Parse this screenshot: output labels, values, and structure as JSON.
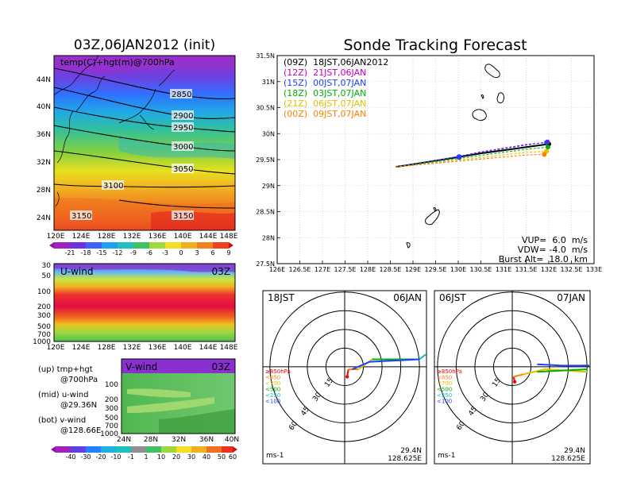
{
  "left_panel": {
    "title": "03Z,06JAN2012 (init)",
    "map_label": "temp(C)+hgt(m)@700hPa",
    "lat_ticks": [
      "44N",
      "40N",
      "36N",
      "32N",
      "28N",
      "24N"
    ],
    "lon_ticks": [
      "120E",
      "124E",
      "128E",
      "132E",
      "136E",
      "140E",
      "144E",
      "148E"
    ],
    "contour_labels": [
      "2850",
      "2900",
      "2950",
      "3000",
      "3050",
      "3100",
      "3150",
      "3150"
    ],
    "temp_colorbar": [
      "-21",
      "-18",
      "-15",
      "-12",
      "-9",
      "-6",
      "-3",
      "0",
      "3",
      "6",
      "9"
    ]
  },
  "uwind_panel": {
    "label": "U-wind",
    "time": "03Z",
    "pressure_ticks": [
      "30",
      "50",
      "100",
      "200",
      "300",
      "500",
      "700",
      "1000"
    ],
    "lon_ticks": [
      "120E",
      "124E",
      "128E",
      "132E",
      "136E",
      "140E",
      "144E",
      "148E"
    ]
  },
  "vwind_panel": {
    "label": "V-wind",
    "time": "03Z",
    "pressure_ticks": [
      "100",
      "200",
      "300",
      "500",
      "700",
      "1000"
    ],
    "lat_ticks": [
      "24N",
      "28N",
      "32N",
      "36N",
      "40N"
    ]
  },
  "legend_notes": [
    {
      "line1": "(up) tmp+hgt",
      "line2": "@700hPa"
    },
    {
      "line1": "(mid) u-wind",
      "line2": "@29.36N"
    },
    {
      "line1": "(bot) v-wind",
      "line2": "@128.66E"
    }
  ],
  "wind_colorbar": [
    "-40",
    "-30",
    "-20",
    "-10",
    "-1",
    "1",
    "10",
    "20",
    "30",
    "40",
    "50",
    "60"
  ],
  "track_panel": {
    "title": "Sonde Tracking Forecast",
    "legend": [
      {
        "text": "(09Z)  18JST,06JAN2012",
        "color": "#000000"
      },
      {
        "text": "(12Z)  21JST,06JAN",
        "color": "#c000c0"
      },
      {
        "text": "(15Z)  00JST,07JAN",
        "color": "#2040ff"
      },
      {
        "text": "(18Z)  03JST,07JAN",
        "color": "#00b000"
      },
      {
        "text": "(21Z)  06JST,07JAN",
        "color": "#e0c000"
      },
      {
        "text": "(00Z)  09JST,07JAN",
        "color": "#ff8000"
      }
    ],
    "params": [
      "VUP=  6.0  m/s",
      "VDW= -4.0  m/s",
      "Burst Alt=  18.0  km"
    ]
  },
  "chart_data": [
    {
      "type": "line",
      "title": "Sonde Tracking Forecast",
      "xlabel": "",
      "ylabel": "",
      "xlim": [
        126,
        133
      ],
      "ylim": [
        27.5,
        31.5
      ],
      "x_ticks": [
        "126E",
        "126.5E",
        "127E",
        "127.5E",
        "128E",
        "128.5E",
        "129E",
        "129.5E",
        "130E",
        "130.5E",
        "131E",
        "131.5E",
        "132E",
        "132.5E",
        "133E"
      ],
      "y_ticks": [
        "27.5N",
        "28N",
        "28.5N",
        "29N",
        "29.5N",
        "30N",
        "30.5N",
        "31N",
        "31.5N"
      ],
      "series": [
        {
          "name": "(09Z)  18JST,06JAN2012",
          "color": "#000000",
          "x": [
            128.62,
            129.0,
            129.5,
            130.0,
            130.5,
            131.0,
            131.5,
            132.0
          ],
          "y": [
            29.36,
            29.41,
            29.48,
            29.55,
            29.62,
            29.68,
            29.74,
            29.8
          ]
        },
        {
          "name": "(12Z)  21JST,06JAN",
          "color": "#c000c0",
          "x": [
            128.62,
            129.0,
            129.5,
            130.0,
            130.5,
            131.0,
            131.5,
            131.97
          ],
          "y": [
            29.36,
            29.41,
            29.48,
            29.56,
            29.64,
            29.71,
            29.78,
            29.84
          ]
        },
        {
          "name": "(15Z)  00JST,07JAN",
          "color": "#2040ff",
          "x": [
            128.62,
            129.0,
            129.5,
            130.0,
            130.5,
            131.0,
            131.5,
            131.95
          ],
          "y": [
            29.36,
            29.41,
            29.48,
            29.56,
            29.65,
            29.72,
            29.79,
            29.83
          ]
        },
        {
          "name": "(18Z)  03JST,07JAN",
          "color": "#00b000",
          "x": [
            128.62,
            129.0,
            129.5,
            130.0,
            130.5,
            131.0,
            131.5,
            131.98
          ],
          "y": [
            29.36,
            29.4,
            29.46,
            29.52,
            29.58,
            29.64,
            29.7,
            29.74
          ]
        },
        {
          "name": "(21Z)  06JST,07JAN",
          "color": "#e0c000",
          "x": [
            128.62,
            129.0,
            129.5,
            130.0,
            130.5,
            131.0,
            131.5,
            131.95
          ],
          "y": [
            29.36,
            29.39,
            29.44,
            29.49,
            29.54,
            29.59,
            29.64,
            29.66
          ]
        },
        {
          "name": "(00Z)  09JST,07JAN",
          "color": "#ff8000",
          "x": [
            128.62,
            129.0,
            129.5,
            130.0,
            130.5,
            131.0,
            131.5,
            131.9
          ],
          "y": [
            29.36,
            29.39,
            29.43,
            29.47,
            29.51,
            29.55,
            29.59,
            29.6
          ]
        }
      ]
    },
    {
      "type": "scatter",
      "title": "18JST 06JAN",
      "corner_left": "18JST",
      "corner_right": "06JAN",
      "unit": "ms-1",
      "location": [
        "29.4N",
        "128.625E"
      ],
      "rings": [
        "15",
        "30",
        "45",
        "60"
      ],
      "levels": [
        {
          "label": "≥850hPa",
          "color": "#ff0000"
        },
        {
          "label": "<850",
          "color": "#ff8000"
        },
        {
          "label": "<700",
          "color": "#e0c000"
        },
        {
          "label": "<500",
          "color": "#00b000"
        },
        {
          "label": "<250",
          "color": "#00c0c0"
        },
        {
          "label": "<100",
          "color": "#2040ff"
        }
      ],
      "series": [
        {
          "name": "≥850hPa",
          "color": "#ff0000",
          "u": [
            2,
            3
          ],
          "v": [
            -8,
            -2
          ]
        },
        {
          "name": "<850",
          "color": "#ff8000",
          "u": [
            3,
            11
          ],
          "v": [
            -2,
            -2
          ]
        },
        {
          "name": "<700",
          "color": "#e0c000",
          "u": [
            11,
            22
          ],
          "v": [
            -2,
            6
          ]
        },
        {
          "name": "<500",
          "color": "#00b000",
          "u": [
            22,
            60
          ],
          "v": [
            6,
            6
          ]
        },
        {
          "name": "<250",
          "color": "#00c0c0",
          "u": [
            60,
            75
          ],
          "v": [
            6,
            10
          ]
        },
        {
          "name": "<100",
          "color": "#2040ff",
          "u": [
            6,
            20,
            60
          ],
          "v": [
            -2,
            4,
            6
          ]
        }
      ]
    },
    {
      "type": "scatter",
      "title": "06JST 07JAN",
      "corner_left": "06JST",
      "corner_right": "07JAN",
      "unit": "ms-1",
      "location": [
        "29.4N",
        "128.625E"
      ],
      "rings": [
        "15",
        "30",
        "45",
        "60"
      ],
      "levels": [
        {
          "label": "≥850hPa",
          "color": "#ff0000"
        },
        {
          "label": "<850",
          "color": "#ff8000"
        },
        {
          "label": "<700",
          "color": "#e0c000"
        },
        {
          "label": "<500",
          "color": "#00b000"
        },
        {
          "label": "<250",
          "color": "#00c0c0"
        },
        {
          "label": "<100",
          "color": "#2040ff"
        }
      ],
      "series": [
        {
          "name": "≥850hPa",
          "color": "#ff0000",
          "u": [
            2,
            1
          ],
          "v": [
            -12,
            -8
          ]
        },
        {
          "name": "<850",
          "color": "#ff8000",
          "u": [
            1,
            9
          ],
          "v": [
            -8,
            -6
          ]
        },
        {
          "name": "<700",
          "color": "#e0c000",
          "u": [
            9,
            26,
            60
          ],
          "v": [
            -6,
            -2,
            -4
          ]
        },
        {
          "name": "<500",
          "color": "#00b000",
          "u": [
            20,
            60
          ],
          "v": [
            -4,
            -2
          ]
        },
        {
          "name": "<250",
          "color": "#00c0c0",
          "u": [
            55,
            75
          ],
          "v": [
            1,
            1
          ]
        },
        {
          "name": "<100",
          "color": "#2040ff",
          "u": [
            20,
            40,
            62
          ],
          "v": [
            2,
            1,
            1
          ]
        }
      ]
    }
  ]
}
